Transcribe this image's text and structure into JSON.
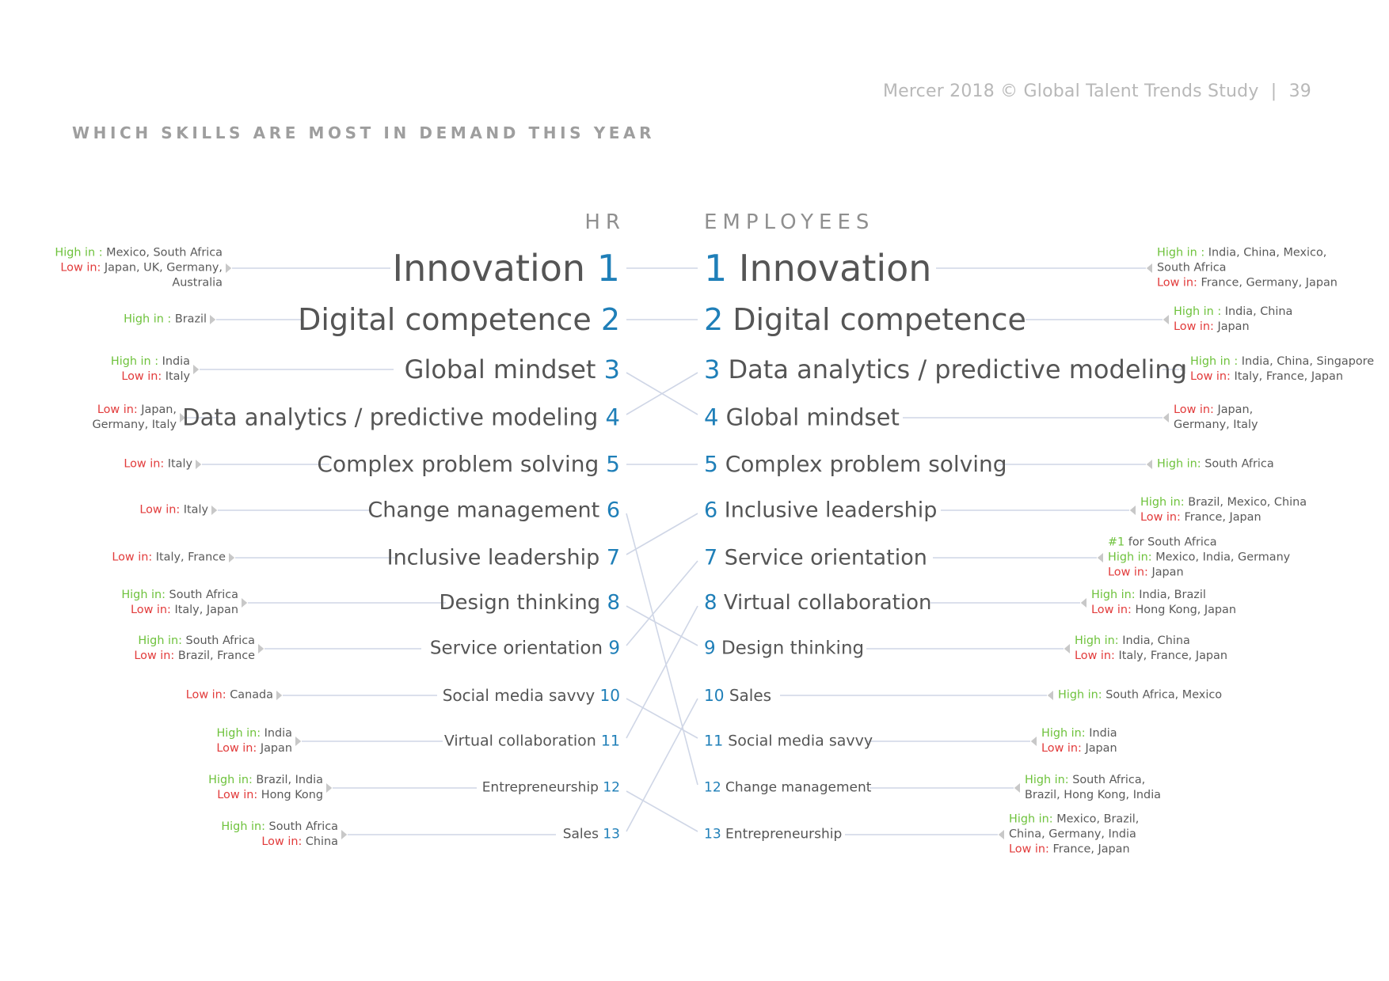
{
  "header": {
    "source": "Mercer 2018 © Global Talent Trends Study",
    "separator": "|",
    "page_number": "39"
  },
  "title": "WHICH SKILLS ARE MOST IN DEMAND THIS YEAR",
  "columns": {
    "hr": "HR",
    "employees": "EMPLOYEES"
  },
  "hr": [
    {
      "rank": "1",
      "skill": "Innovation",
      "notes": [
        {
          "label": "High in :",
          "value": " Mexico, South Africa",
          "type": "high"
        },
        {
          "label": "Low in:",
          "value": " Japan, UK, Germany,",
          "type": "low"
        },
        {
          "label": "",
          "value": "Australia",
          "type": "plain"
        }
      ]
    },
    {
      "rank": "2",
      "skill": "Digital competence",
      "notes": [
        {
          "label": "High in :",
          "value": " Brazil",
          "type": "high"
        }
      ]
    },
    {
      "rank": "3",
      "skill": "Global mindset",
      "notes": [
        {
          "label": "High in :",
          "value": " India",
          "type": "high"
        },
        {
          "label": "Low in:",
          "value": " Italy",
          "type": "low"
        }
      ]
    },
    {
      "rank": "4",
      "skill": "Data analytics / predictive modeling",
      "notes": [
        {
          "label": "Low in:",
          "value": " Japan,",
          "type": "low"
        },
        {
          "label": "",
          "value": "Germany, Italy",
          "type": "plain"
        }
      ]
    },
    {
      "rank": "5",
      "skill": "Complex problem solving",
      "notes": [
        {
          "label": "Low in:",
          "value": " Italy",
          "type": "low"
        }
      ]
    },
    {
      "rank": "6",
      "skill": "Change management",
      "notes": [
        {
          "label": "Low in:",
          "value": " Italy",
          "type": "low"
        }
      ]
    },
    {
      "rank": "7",
      "skill": "Inclusive leadership",
      "notes": [
        {
          "label": "Low in:",
          "value": " Italy, France",
          "type": "low"
        }
      ]
    },
    {
      "rank": "8",
      "skill": "Design thinking",
      "notes": [
        {
          "label": "High in:",
          "value": " South Africa",
          "type": "high"
        },
        {
          "label": "Low in:",
          "value": " Italy, Japan",
          "type": "low"
        }
      ]
    },
    {
      "rank": "9",
      "skill": "Service orientation",
      "notes": [
        {
          "label": "High in:",
          "value": " South Africa",
          "type": "high"
        },
        {
          "label": "Low in:",
          "value": " Brazil, France",
          "type": "low"
        }
      ]
    },
    {
      "rank": "10",
      "skill": "Social media savvy",
      "notes": [
        {
          "label": "Low in:",
          "value": " Canada",
          "type": "low"
        }
      ]
    },
    {
      "rank": "11",
      "skill": "Virtual collaboration",
      "notes": [
        {
          "label": "High in:",
          "value": " India",
          "type": "high"
        },
        {
          "label": "Low in:",
          "value": " Japan",
          "type": "low"
        }
      ]
    },
    {
      "rank": "12",
      "skill": "Entrepreneurship",
      "notes": [
        {
          "label": "High in:",
          "value": " Brazil, India",
          "type": "high"
        },
        {
          "label": "Low in:",
          "value": " Hong Kong",
          "type": "low"
        }
      ]
    },
    {
      "rank": "13",
      "skill": "Sales",
      "notes": [
        {
          "label": "High in:",
          "value": " South Africa",
          "type": "high"
        },
        {
          "label": "Low in:",
          "value": " China",
          "type": "low"
        }
      ]
    }
  ],
  "employees": [
    {
      "rank": "1",
      "skill": "Innovation",
      "notes": [
        {
          "label": "High in :",
          "value": " India, China, Mexico,",
          "type": "high"
        },
        {
          "label": "",
          "value": "South Africa",
          "type": "plain"
        },
        {
          "label": "Low in:",
          "value": " France, Germany, Japan",
          "type": "low"
        }
      ]
    },
    {
      "rank": "2",
      "skill": "Digital competence",
      "notes": [
        {
          "label": "High in :",
          "value": " India, China",
          "type": "high"
        },
        {
          "label": "Low in:",
          "value": " Japan",
          "type": "low"
        }
      ]
    },
    {
      "rank": "3",
      "skill": "Data analytics / predictive modeling",
      "notes": [
        {
          "label": "High in :",
          "value": " India, China, Singapore",
          "type": "high"
        },
        {
          "label": "Low in:",
          "value": " Italy, France, Japan",
          "type": "low"
        }
      ]
    },
    {
      "rank": "4",
      "skill": "Global mindset",
      "notes": [
        {
          "label": "Low in:",
          "value": " Japan,",
          "type": "low"
        },
        {
          "label": "",
          "value": "Germany, Italy",
          "type": "plain"
        }
      ]
    },
    {
      "rank": "5",
      "skill": "Complex problem solving",
      "notes": [
        {
          "label": "High in:",
          "value": " South Africa",
          "type": "high"
        }
      ]
    },
    {
      "rank": "6",
      "skill": "Inclusive leadership",
      "notes": [
        {
          "label": "High in:",
          "value": " Brazil, Mexico, China",
          "type": "high"
        },
        {
          "label": "Low in:",
          "value": " France, Japan",
          "type": "low"
        }
      ]
    },
    {
      "rank": "7",
      "skill": "Service orientation",
      "notes": [
        {
          "label": "#1",
          "value": " for South Africa",
          "type": "top"
        },
        {
          "label": "High in:",
          "value": " Mexico, India, Germany",
          "type": "high"
        },
        {
          "label": "Low in:",
          "value": " Japan",
          "type": "low"
        }
      ]
    },
    {
      "rank": "8",
      "skill": "Virtual collaboration",
      "notes": [
        {
          "label": "High in:",
          "value": " India, Brazil",
          "type": "high"
        },
        {
          "label": "Low in:",
          "value": " Hong Kong, Japan",
          "type": "low"
        }
      ]
    },
    {
      "rank": "9",
      "skill": "Design thinking",
      "notes": [
        {
          "label": "High in:",
          "value": " India, China",
          "type": "high"
        },
        {
          "label": "Low in:",
          "value": " Italy, France, Japan",
          "type": "low"
        }
      ]
    },
    {
      "rank": "10",
      "skill": "Sales",
      "notes": [
        {
          "label": "High in:",
          "value": " South Africa, Mexico",
          "type": "high"
        }
      ]
    },
    {
      "rank": "11",
      "skill": "Social media savvy",
      "notes": [
        {
          "label": "High in:",
          "value": " India",
          "type": "high"
        },
        {
          "label": "Low in:",
          "value": " Japan",
          "type": "low"
        }
      ]
    },
    {
      "rank": "12",
      "skill": "Change management",
      "notes": [
        {
          "label": "High in:",
          "value": " South Africa,",
          "type": "high"
        },
        {
          "label": "",
          "value": "Brazil, Hong Kong, India",
          "type": "plain"
        }
      ]
    },
    {
      "rank": "13",
      "skill": "Entrepreneurship",
      "notes": [
        {
          "label": "High in:",
          "value": " Mexico, Brazil,",
          "type": "high"
        },
        {
          "label": "",
          "value": "China, Germany, India",
          "type": "plain"
        },
        {
          "label": "Low in:",
          "value": " France, Japan",
          "type": "low"
        }
      ]
    }
  ],
  "colors": {
    "rank_number": "#1f7fb8",
    "high_label": "#6ec23c",
    "low_label": "#e23b3b",
    "skill_text": "#555555",
    "connector": "#cfd6e6",
    "tick": "#c8c8c8"
  }
}
